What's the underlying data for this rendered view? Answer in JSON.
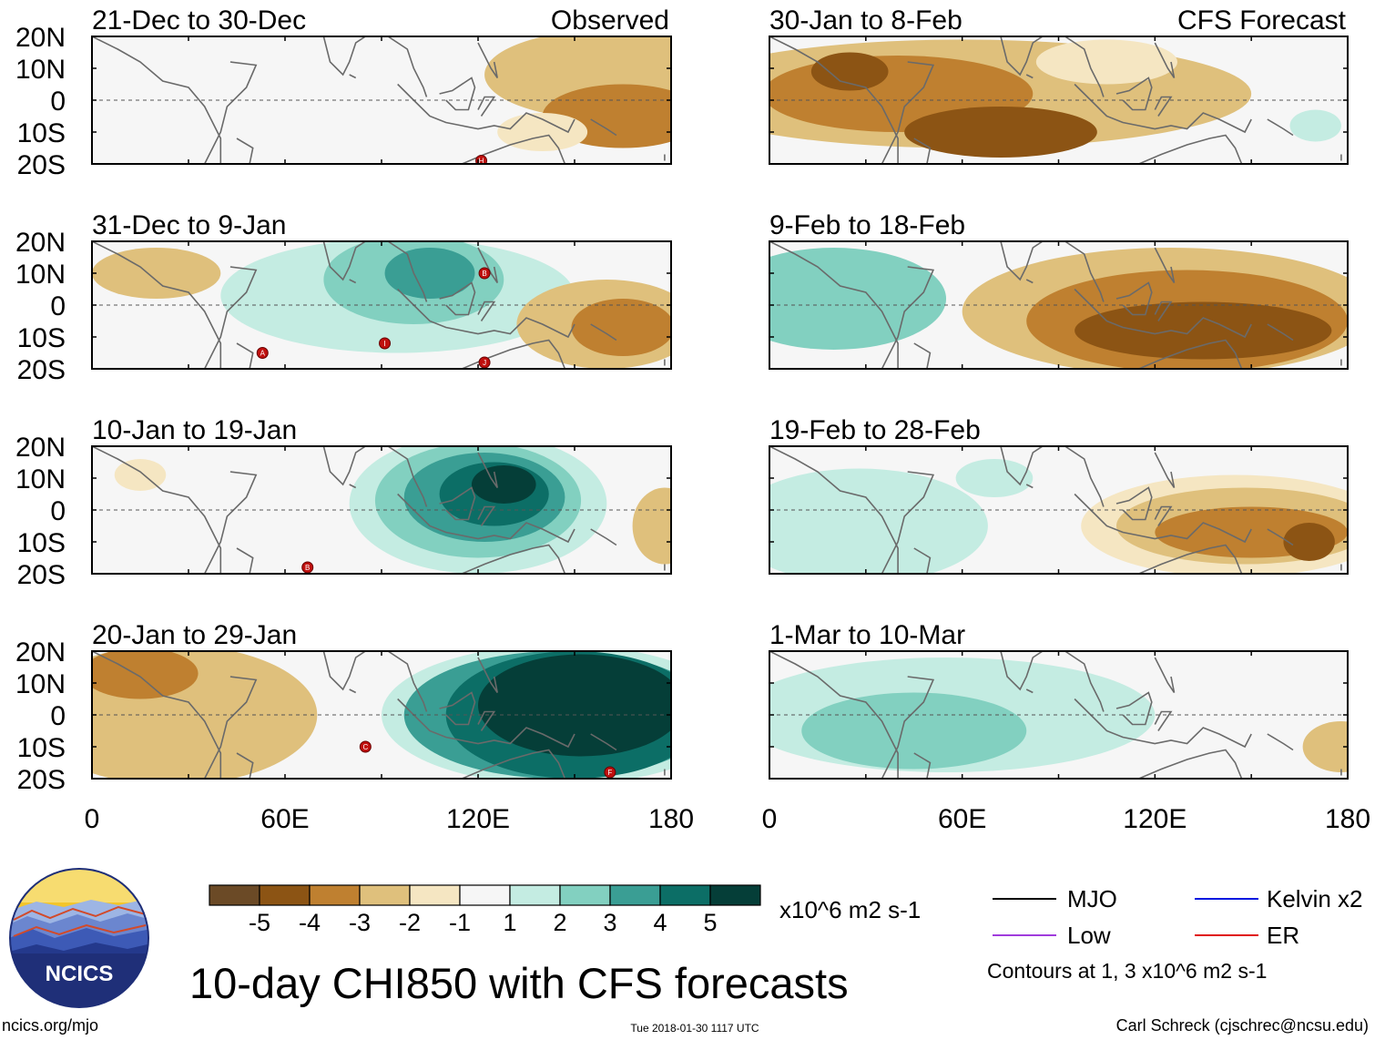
{
  "chart_data": {
    "type": "heatmap",
    "title": "10-day CHI850 with CFS forecasts",
    "units": "x10^6 m2 s-1",
    "x_ticks": [
      "0",
      "60E",
      "120E",
      "180"
    ],
    "y_ticks": [
      "20N",
      "10N",
      "0",
      "10S",
      "20S"
    ],
    "xlim": [
      0,
      180
    ],
    "ylim": [
      -20,
      20
    ],
    "colorbar": {
      "labels": [
        "-5",
        "-4",
        "-3",
        "-2",
        "-1",
        "1",
        "2",
        "3",
        "4",
        "5"
      ],
      "colors": [
        "#6b4a26",
        "#8c5414",
        "#bf8030",
        "#dfc07c",
        "#f5e6c2",
        "#f6f6f6",
        "#c4ece2",
        "#82d0c0",
        "#3a9e94",
        "#0c6e66",
        "#053e38"
      ]
    },
    "legend": [
      {
        "label": "MJO",
        "color": "#000000"
      },
      {
        "label": "Kelvin x2",
        "color": "#0018e0"
      },
      {
        "label": "Low",
        "color": "#a03cdc"
      },
      {
        "label": "ER",
        "color": "#e01010"
      }
    ],
    "contour_note": "Contours at 1, 3 x10^6 m2 s-1",
    "panels": [
      {
        "id": "p1",
        "title": "21-Dec to 30-Dec",
        "tag": "Observed",
        "blobs": [
          {
            "lon": 160,
            "lat": 8,
            "rx": 38,
            "ry": 14,
            "level": -2
          },
          {
            "lon": 165,
            "lat": -5,
            "rx": 25,
            "ry": 10,
            "level": -3
          },
          {
            "lon": 140,
            "lat": -10,
            "rx": 14,
            "ry": 6,
            "level": -1
          }
        ],
        "storms": [
          {
            "lon": 121,
            "lat": -19,
            "label": "H"
          }
        ]
      },
      {
        "id": "p2",
        "title": "30-Jan to 8-Feb",
        "tag": "CFS Forecast",
        "blobs": [
          {
            "lon": 60,
            "lat": 2,
            "rx": 90,
            "ry": 17,
            "level": -2
          },
          {
            "lon": 40,
            "lat": 2,
            "rx": 42,
            "ry": 12,
            "level": -3
          },
          {
            "lon": 72,
            "lat": -10,
            "rx": 30,
            "ry": 8,
            "level": -4
          },
          {
            "lon": 25,
            "lat": 9,
            "rx": 12,
            "ry": 6,
            "level": -4
          },
          {
            "lon": 105,
            "lat": 12,
            "rx": 22,
            "ry": 7,
            "level": -1
          },
          {
            "lon": 170,
            "lat": -8,
            "rx": 8,
            "ry": 5,
            "level": 1
          }
        ],
        "storms": []
      },
      {
        "id": "p3",
        "title": "31-Dec to 9-Jan",
        "tag": "",
        "blobs": [
          {
            "lon": 95,
            "lat": 3,
            "rx": 55,
            "ry": 18,
            "level": 1
          },
          {
            "lon": 100,
            "lat": 8,
            "rx": 28,
            "ry": 14,
            "level": 2
          },
          {
            "lon": 105,
            "lat": 10,
            "rx": 14,
            "ry": 8,
            "level": 3
          },
          {
            "lon": 20,
            "lat": 10,
            "rx": 20,
            "ry": 8,
            "level": -2
          },
          {
            "lon": 160,
            "lat": -6,
            "rx": 28,
            "ry": 14,
            "level": -2
          },
          {
            "lon": 165,
            "lat": -7,
            "rx": 16,
            "ry": 9,
            "level": -3
          }
        ],
        "storms": [
          {
            "lon": 53,
            "lat": -15,
            "label": "A"
          },
          {
            "lon": 91,
            "lat": -12,
            "label": "I"
          },
          {
            "lon": 122,
            "lat": 10,
            "label": "B"
          },
          {
            "lon": 122,
            "lat": -18,
            "label": "J"
          }
        ]
      },
      {
        "id": "p4",
        "title": "9-Feb to 18-Feb",
        "tag": "",
        "blobs": [
          {
            "lon": 20,
            "lat": 2,
            "rx": 35,
            "ry": 16,
            "level": 2
          },
          {
            "lon": 125,
            "lat": -2,
            "rx": 65,
            "ry": 20,
            "level": -2
          },
          {
            "lon": 130,
            "lat": -5,
            "rx": 50,
            "ry": 16,
            "level": -3
          },
          {
            "lon": 135,
            "lat": -8,
            "rx": 40,
            "ry": 9,
            "level": -4
          }
        ],
        "storms": []
      },
      {
        "id": "p5",
        "title": "10-Jan to 19-Jan",
        "tag": "",
        "blobs": [
          {
            "lon": 120,
            "lat": 2,
            "rx": 40,
            "ry": 22,
            "level": 1
          },
          {
            "lon": 120,
            "lat": 3,
            "rx": 32,
            "ry": 18,
            "level": 2
          },
          {
            "lon": 122,
            "lat": 4,
            "rx": 25,
            "ry": 14,
            "level": 3
          },
          {
            "lon": 125,
            "lat": 5,
            "rx": 17,
            "ry": 10,
            "level": 4
          },
          {
            "lon": 128,
            "lat": 8,
            "rx": 10,
            "ry": 6,
            "level": 5
          },
          {
            "lon": 15,
            "lat": 11,
            "rx": 8,
            "ry": 5,
            "level": -1
          },
          {
            "lon": 178,
            "lat": -5,
            "rx": 10,
            "ry": 12,
            "level": -2
          }
        ],
        "storms": [
          {
            "lon": 67,
            "lat": -18,
            "label": "B"
          }
        ]
      },
      {
        "id": "p6",
        "title": "19-Feb to 28-Feb",
        "tag": "",
        "blobs": [
          {
            "lon": 28,
            "lat": -5,
            "rx": 40,
            "ry": 18,
            "level": 1
          },
          {
            "lon": 70,
            "lat": 10,
            "rx": 12,
            "ry": 6,
            "level": 1
          },
          {
            "lon": 145,
            "lat": -5,
            "rx": 48,
            "ry": 16,
            "level": -1
          },
          {
            "lon": 148,
            "lat": -5,
            "rx": 40,
            "ry": 12,
            "level": -2
          },
          {
            "lon": 150,
            "lat": -7,
            "rx": 30,
            "ry": 8,
            "level": -3
          },
          {
            "lon": 168,
            "lat": -10,
            "rx": 8,
            "ry": 6,
            "level": -4
          }
        ],
        "storms": []
      },
      {
        "id": "p7",
        "title": "20-Jan to 29-Jan",
        "tag": "",
        "blobs": [
          {
            "lon": 25,
            "lat": 0,
            "rx": 45,
            "ry": 22,
            "level": -2
          },
          {
            "lon": 15,
            "lat": 13,
            "rx": 18,
            "ry": 8,
            "level": -3
          },
          {
            "lon": 145,
            "lat": 0,
            "rx": 55,
            "ry": 22,
            "level": 1
          },
          {
            "lon": 145,
            "lat": 0,
            "rx": 48,
            "ry": 20,
            "level": 3
          },
          {
            "lon": 150,
            "lat": 0,
            "rx": 40,
            "ry": 20,
            "level": 4
          },
          {
            "lon": 152,
            "lat": 3,
            "rx": 32,
            "ry": 16,
            "level": 5
          }
        ],
        "storms": [
          {
            "lon": 85,
            "lat": -10,
            "label": "C"
          },
          {
            "lon": 161,
            "lat": -18,
            "label": "F"
          }
        ]
      },
      {
        "id": "p8",
        "title": "1-Mar to 10-Mar",
        "tag": "",
        "blobs": [
          {
            "lon": 55,
            "lat": 0,
            "rx": 65,
            "ry": 18,
            "level": 1
          },
          {
            "lon": 45,
            "lat": -5,
            "rx": 35,
            "ry": 12,
            "level": 2
          },
          {
            "lon": 178,
            "lat": -10,
            "rx": 12,
            "ry": 8,
            "level": -2
          }
        ],
        "storms": []
      }
    ]
  },
  "branding": {
    "logo_text": "NCICS",
    "site": "ncics.org/mjo",
    "timestamp": "Tue 2018-01-30 1117 UTC",
    "author": "Carl Schreck (cjschrec@ncsu.edu)"
  }
}
